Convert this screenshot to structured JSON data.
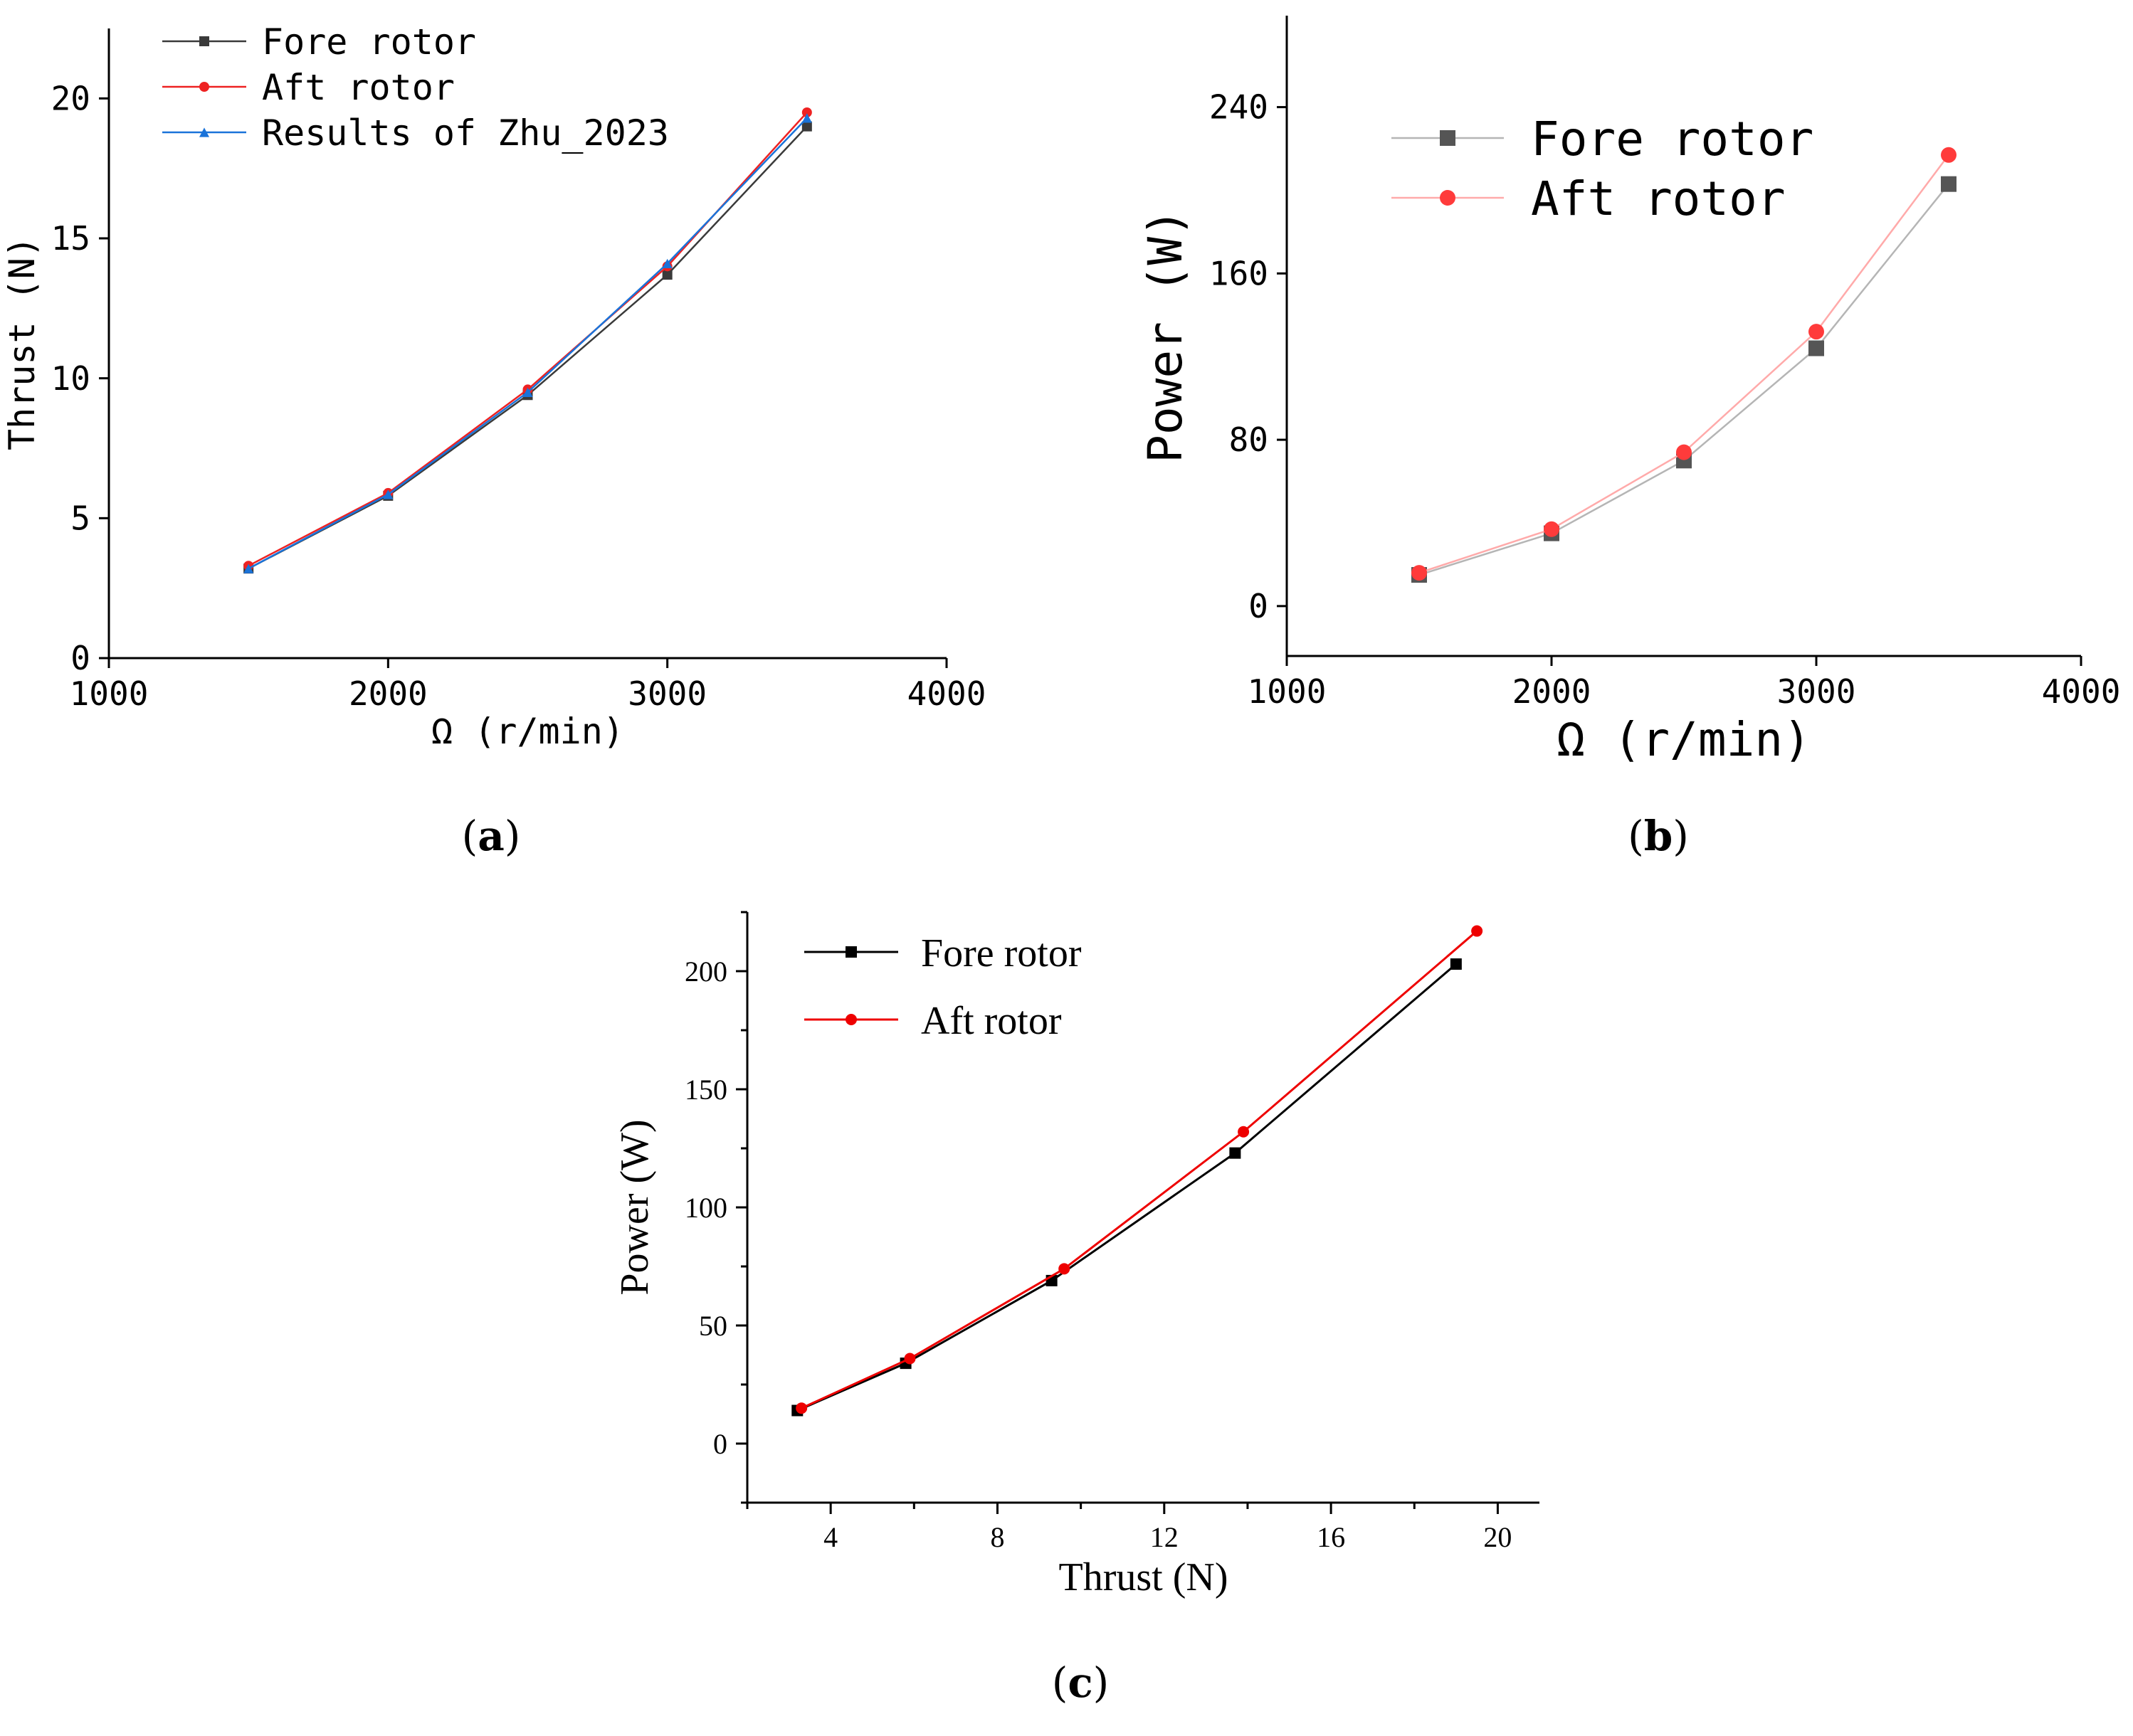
{
  "chart_data": [
    {
      "id": "a",
      "type": "line",
      "panel_label": "a",
      "xlabel": "Ω (r/min)",
      "ylabel": "Thrust (N)",
      "xlim": [
        1000,
        4000
      ],
      "ylim": [
        0,
        22.5
      ],
      "xticks": [
        1000,
        2000,
        3000,
        4000
      ],
      "yticks": [
        0,
        5,
        10,
        15,
        20
      ],
      "legend_position": "top-left",
      "series": [
        {
          "name": "Fore rotor",
          "color": "#3a3a3a",
          "marker": "square",
          "x": [
            1500,
            2000,
            2500,
            3000,
            3500
          ],
          "values": [
            3.2,
            5.8,
            9.4,
            13.7,
            19.0
          ]
        },
        {
          "name": "Aft rotor",
          "color": "#ee2222",
          "marker": "circle",
          "x": [
            1500,
            2000,
            2500,
            3000,
            3500
          ],
          "values": [
            3.3,
            5.9,
            9.6,
            14.0,
            19.5
          ]
        },
        {
          "name": "Results of Zhu_2023",
          "color": "#1a73d9",
          "marker": "triangle",
          "x": [
            1500,
            2000,
            2500,
            3000,
            3500
          ],
          "values": [
            3.2,
            5.85,
            9.5,
            14.1,
            19.3
          ]
        }
      ]
    },
    {
      "id": "b",
      "type": "line",
      "panel_label": "b",
      "xlabel": "Ω (r/min)",
      "ylabel": "Power (W)",
      "xlim": [
        1000,
        4000
      ],
      "ylim": [
        -24,
        284
      ],
      "xticks": [
        1000,
        2000,
        3000,
        4000
      ],
      "yticks": [
        0,
        80,
        160,
        240
      ],
      "legend_position": "top-left",
      "series": [
        {
          "name": "Fore rotor",
          "color": "#555555",
          "line_color": "#b5b5b5",
          "marker": "square",
          "x": [
            1500,
            2000,
            2500,
            3000,
            3500
          ],
          "values": [
            15,
            35,
            70,
            124,
            203
          ]
        },
        {
          "name": "Aft rotor",
          "color": "#ff3b3b",
          "line_color": "#ffaaaa",
          "marker": "circle",
          "x": [
            1500,
            2000,
            2500,
            3000,
            3500
          ],
          "values": [
            16,
            37,
            74,
            132,
            217
          ]
        }
      ]
    },
    {
      "id": "c",
      "type": "line",
      "panel_label": "c",
      "xlabel": "Thrust (N)",
      "ylabel": "Power (W)",
      "xlim": [
        2,
        21
      ],
      "ylim": [
        -25,
        225
      ],
      "xticks": [
        4,
        8,
        12,
        16,
        20
      ],
      "yticks": [
        0,
        50,
        100,
        150,
        200
      ],
      "legend_position": "top-left",
      "series": [
        {
          "name": "Fore rotor",
          "color": "#000000",
          "marker": "square",
          "x": [
            3.2,
            5.8,
            9.3,
            13.7,
            19.0
          ],
          "values": [
            14,
            34,
            69,
            123,
            203
          ]
        },
        {
          "name": "Aft rotor",
          "color": "#ee0000",
          "marker": "circle",
          "x": [
            3.3,
            5.9,
            9.6,
            13.9,
            19.5
          ],
          "values": [
            15,
            36,
            74,
            132,
            217
          ]
        }
      ]
    }
  ]
}
